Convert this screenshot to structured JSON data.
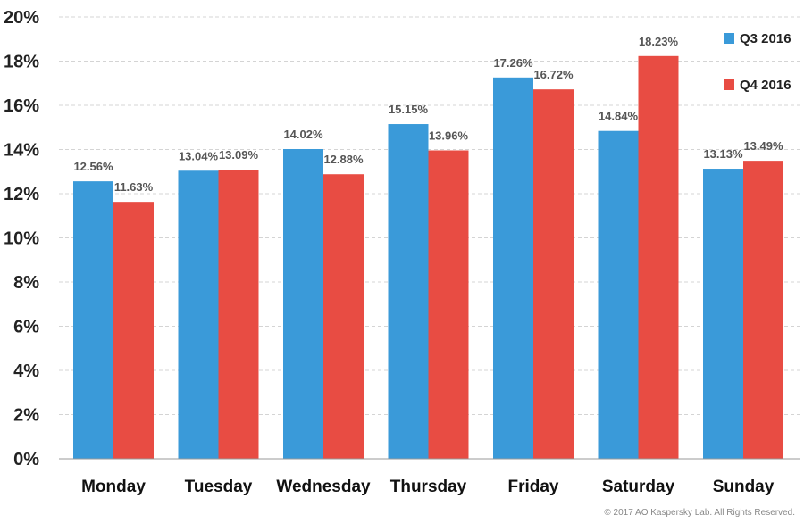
{
  "chart_data": {
    "type": "bar",
    "categories": [
      "Monday",
      "Tuesday",
      "Wednesday",
      "Thursday",
      "Friday",
      "Saturday",
      "Sunday"
    ],
    "series": [
      {
        "name": "Q3 2016",
        "color": "#3a9ad9",
        "values": [
          12.56,
          13.04,
          14.02,
          15.15,
          17.26,
          14.84,
          13.13
        ]
      },
      {
        "name": "Q4 2016",
        "color": "#e84c43",
        "values": [
          11.63,
          13.09,
          12.88,
          13.96,
          16.72,
          18.23,
          13.49
        ]
      }
    ],
    "value_labels": [
      [
        "12.56%",
        "13.04%",
        "14.02%",
        "15.15%",
        "17.26%",
        "14.84%",
        "13.13%"
      ],
      [
        "11.63%",
        "13.09%",
        "12.88%",
        "13.96%",
        "16.72%",
        "18.23%",
        "13.49%"
      ]
    ],
    "ylim": [
      0,
      20
    ],
    "yticks": [
      0,
      2,
      4,
      6,
      8,
      10,
      12,
      14,
      16,
      18,
      20
    ],
    "ytick_labels": [
      "0%",
      "2%",
      "4%",
      "6%",
      "8%",
      "10%",
      "12%",
      "14%",
      "16%",
      "18%",
      "20%"
    ],
    "grid": true,
    "legend_position": "top-right"
  },
  "footer": {
    "copyright": "© 2017 AO Kaspersky Lab. All Rights Reserved."
  }
}
